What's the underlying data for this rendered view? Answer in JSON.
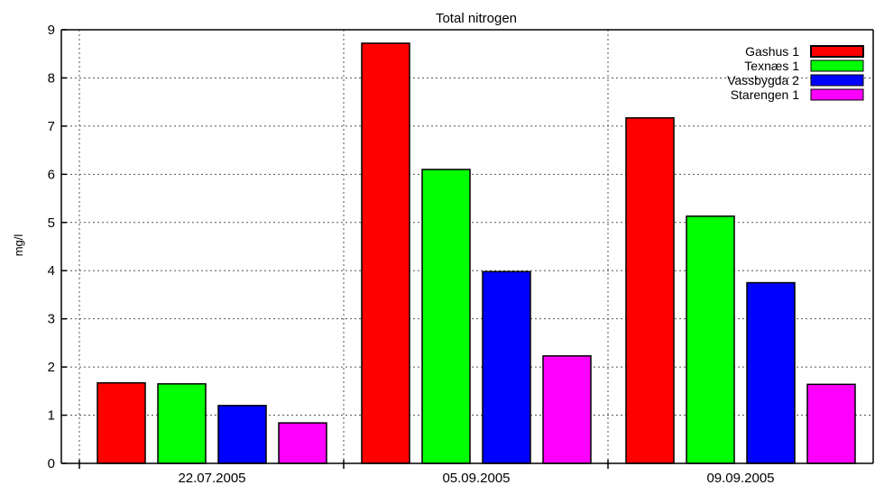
{
  "chart_data": {
    "type": "bar",
    "title": "Total nitrogen",
    "xlabel": "",
    "ylabel": "mg/l",
    "ylim": [
      0,
      9
    ],
    "yticks": [
      0,
      1,
      2,
      3,
      4,
      5,
      6,
      7,
      8,
      9
    ],
    "grid": true,
    "legend_position": "top-right",
    "categories": [
      "22.07.2005",
      "05.09.2005",
      "09.09.2005"
    ],
    "series": [
      {
        "name": "Gashus 1",
        "color": "#ff0000",
        "values": [
          1.67,
          8.72,
          7.17
        ]
      },
      {
        "name": "Texnæs 1",
        "color": "#00ff00",
        "values": [
          1.65,
          6.1,
          5.13
        ]
      },
      {
        "name": "Vassbygda 2",
        "color": "#0000ff",
        "values": [
          1.2,
          3.98,
          3.75
        ]
      },
      {
        "name": "Starengen 1",
        "color": "#ff00ff",
        "values": [
          0.84,
          2.23,
          1.64
        ]
      }
    ]
  }
}
